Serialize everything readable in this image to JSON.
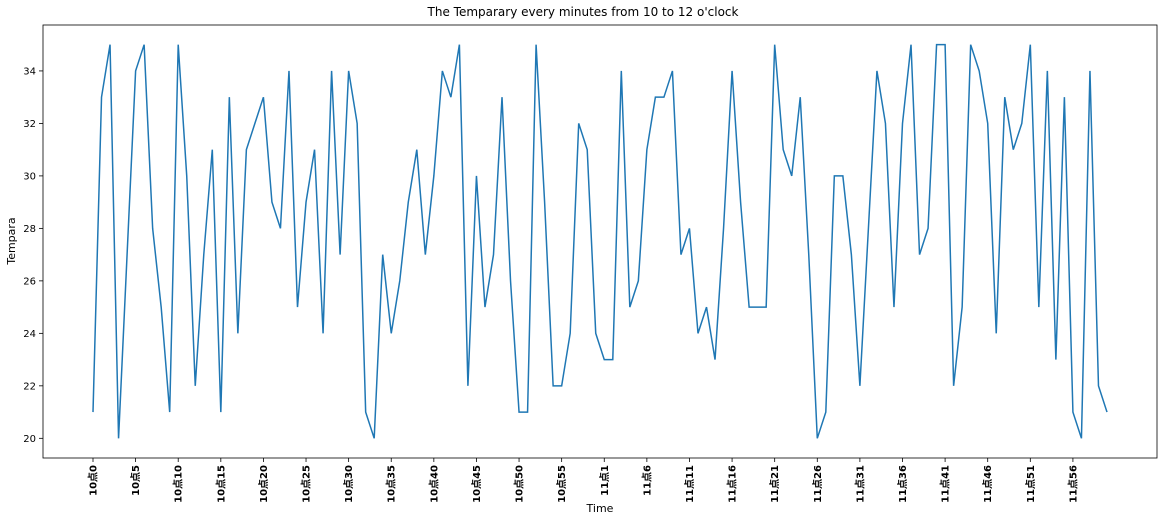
{
  "chart_data": {
    "type": "line",
    "title": "The Temparary every minutes from 10 to 12 o'clock",
    "xlabel": "Time",
    "ylabel": "Tempara",
    "ylim": [
      19.25,
      35.75
    ],
    "yticks": [
      20,
      22,
      24,
      26,
      28,
      30,
      32,
      34
    ],
    "grid": false,
    "color": "#1f77b4",
    "xtick_labels": [
      "10点0",
      "10点5",
      "10点10",
      "10点15",
      "10点20",
      "10点25",
      "10点30",
      "10点35",
      "10点40",
      "10点45",
      "10点50",
      "10点55",
      "11点1",
      "11点6",
      "11点11",
      "11点16",
      "11点21",
      "11点26",
      "11点31",
      "11点36",
      "11点41",
      "11点46",
      "11点51",
      "11点56"
    ],
    "xtick_indices": [
      0,
      5,
      10,
      15,
      20,
      25,
      30,
      35,
      40,
      45,
      50,
      55,
      60,
      65,
      70,
      75,
      80,
      85,
      90,
      95,
      100,
      105,
      110,
      115
    ],
    "values": [
      21,
      33,
      35,
      20,
      27,
      34,
      35,
      28,
      25,
      21,
      35,
      30,
      22,
      27,
      31,
      21,
      33,
      24,
      31,
      32,
      33,
      29,
      28,
      34,
      25,
      29,
      31,
      24,
      34,
      27,
      34,
      32,
      21,
      20,
      27,
      24,
      26,
      29,
      31,
      27,
      30,
      34,
      33,
      35,
      22,
      30,
      25,
      27,
      33,
      26,
      21,
      21,
      35,
      29,
      22,
      22,
      24,
      32,
      31,
      24,
      23,
      23,
      34,
      25,
      26,
      31,
      33,
      33,
      34,
      27,
      28,
      24,
      25,
      23,
      28,
      34,
      29,
      25,
      25,
      25,
      35,
      31,
      30,
      33,
      27,
      20,
      21,
      30,
      30,
      27,
      22,
      28,
      34,
      32,
      25,
      32,
      35,
      27,
      28,
      35,
      35,
      22,
      25,
      35,
      34,
      32,
      24,
      33,
      31,
      32,
      35,
      25,
      34,
      23,
      33,
      21,
      20,
      34,
      22,
      21
    ]
  }
}
